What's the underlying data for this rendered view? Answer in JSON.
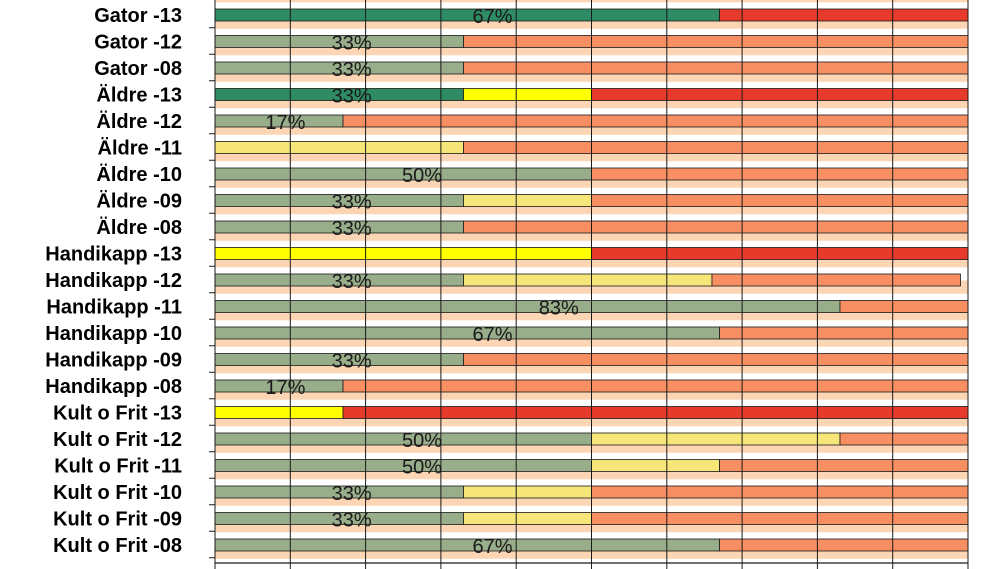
{
  "chart_data": {
    "type": "bar",
    "orientation": "horizontal",
    "stacked": true,
    "xlim": [
      0,
      100
    ],
    "grid": true,
    "colors": {
      "band": "#fcd5b4",
      "green_dark": "#2e8b64",
      "green_light": "#98ad8a",
      "yellow_bright": "#ffff00",
      "yellow_light": "#f6e67a",
      "red_bright": "#e63b2a",
      "orange": "#f78f63",
      "gridline": "#1a1a1a"
    },
    "categories": [
      "Gator -13",
      "Gator -12",
      "Gator -08",
      "Äldre -13",
      "Äldre -12",
      "Äldre -11",
      "Äldre -10",
      "Äldre -09",
      "Äldre -08",
      "Handikapp -13",
      "Handikapp -12",
      "Handikapp -11",
      "Handikapp -10",
      "Handikapp -09",
      "Handikapp -08",
      "Kult o Frit -13",
      "Kult o Frit -12",
      "Kult o Frit -11",
      "Kult o Frit -10",
      "Kult o Frit -09",
      "Kult o Frit -08"
    ],
    "series": [
      {
        "color": "#2e8b64",
        "values": [
          67,
          0,
          0,
          33,
          0,
          0,
          0,
          0,
          0,
          0,
          0,
          0,
          0,
          0,
          0,
          0,
          0,
          0,
          0,
          0,
          0
        ]
      },
      {
        "color": "#98ad8a",
        "values": [
          0,
          33,
          33,
          0,
          17,
          0,
          50,
          33,
          33,
          0,
          33,
          83,
          67,
          33,
          17,
          0,
          50,
          50,
          33,
          33,
          67
        ]
      },
      {
        "color": "#ffff00",
        "values": [
          0,
          0,
          0,
          17,
          0,
          0,
          0,
          0,
          0,
          50,
          0,
          0,
          0,
          0,
          0,
          17,
          0,
          0,
          0,
          0,
          0
        ]
      },
      {
        "color": "#f6e67a",
        "values": [
          0,
          0,
          0,
          0,
          0,
          33,
          0,
          17,
          0,
          0,
          33,
          0,
          0,
          0,
          0,
          0,
          33,
          17,
          17,
          17,
          0
        ]
      },
      {
        "color": "#e63b2a",
        "values": [
          33,
          0,
          0,
          50,
          0,
          0,
          0,
          0,
          0,
          50,
          0,
          0,
          0,
          0,
          0,
          83,
          0,
          0,
          0,
          0,
          0
        ]
      },
      {
        "color": "#f78f63",
        "values": [
          0,
          67,
          67,
          0,
          83,
          67,
          50,
          50,
          67,
          0,
          33,
          17,
          33,
          67,
          83,
          0,
          17,
          33,
          50,
          50,
          33
        ]
      }
    ],
    "data_labels": [
      "67%",
      "33%",
      "33%",
      "33%",
      "17%",
      "",
      "50%",
      "33%",
      "33%",
      "",
      "33%",
      "83%",
      "67%",
      "33%",
      "17%",
      "",
      "50%",
      "50%",
      "33%",
      "33%",
      "67%"
    ]
  }
}
